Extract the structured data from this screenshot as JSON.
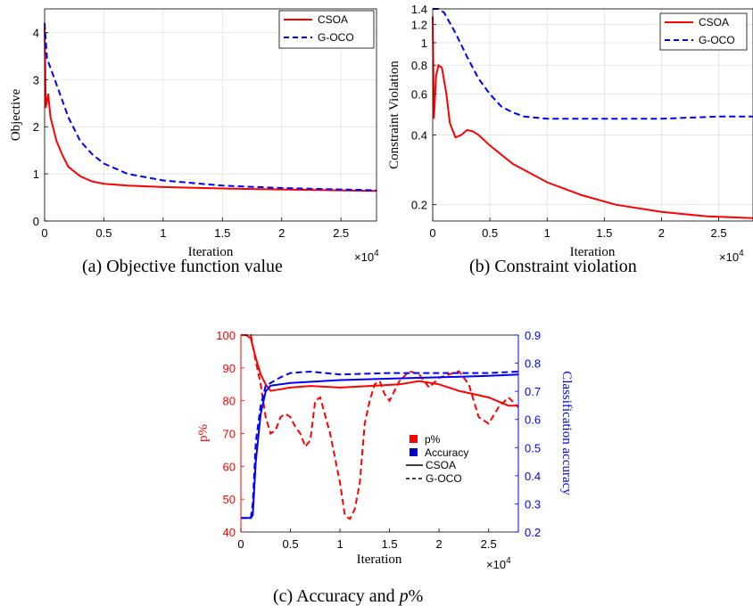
{
  "captions": {
    "a": "(a) Objective function value",
    "b": "(b) Constraint violation",
    "c_prefix": "(c) Accuracy and ",
    "c_var": "p",
    "c_suffix": "%"
  },
  "chart_data": [
    {
      "type": "line",
      "ylabel": "Objective",
      "xlabel": "Iteration",
      "x_multiplier": "×10^4",
      "xlim": [
        0,
        2.8
      ],
      "ylim": [
        0,
        4.5
      ],
      "x_ticks": [
        "0",
        "0.5",
        "1",
        "1.5",
        "2",
        "2.5"
      ],
      "y_ticks": [
        "0",
        "1",
        "2",
        "3",
        "4"
      ],
      "grid": true,
      "legend": "top-right",
      "series": [
        {
          "name": "CSOA",
          "color": "#ff0000",
          "style": "solid",
          "x": [
            0,
            0.01,
            0.03,
            0.05,
            0.1,
            0.15,
            0.2,
            0.3,
            0.4,
            0.5,
            0.7,
            1.0,
            1.5,
            2.0,
            2.5,
            2.8
          ],
          "y": [
            4.1,
            2.4,
            2.7,
            2.2,
            1.7,
            1.4,
            1.15,
            0.95,
            0.84,
            0.79,
            0.75,
            0.72,
            0.69,
            0.67,
            0.65,
            0.64
          ]
        },
        {
          "name": "G-OCO",
          "color": "#0000ff",
          "style": "dashed",
          "x": [
            0,
            0.02,
            0.1,
            0.2,
            0.3,
            0.4,
            0.5,
            0.7,
            1.0,
            1.5,
            2.0,
            2.5,
            2.8
          ],
          "y": [
            4.2,
            3.45,
            2.9,
            2.2,
            1.7,
            1.42,
            1.22,
            1.0,
            0.86,
            0.75,
            0.7,
            0.67,
            0.65
          ]
        }
      ]
    },
    {
      "type": "line",
      "ylabel": "Constraint Violation",
      "xlabel": "Iteration",
      "x_multiplier": "×10^4",
      "xlim": [
        0,
        2.8
      ],
      "ylim": [
        0.17,
        1.4
      ],
      "yscale": "log",
      "x_ticks": [
        "0",
        "0.5",
        "1",
        "1.5",
        "2",
        "2.5"
      ],
      "y_ticks": [
        "0.2",
        "0.4",
        "0.6",
        "0.8",
        "1",
        "1.2",
        "1.4"
      ],
      "grid": true,
      "legend": "top-right",
      "series": [
        {
          "name": "CSOA",
          "color": "#ff0000",
          "style": "solid",
          "x": [
            0,
            0.01,
            0.03,
            0.05,
            0.08,
            0.12,
            0.15,
            0.2,
            0.25,
            0.3,
            0.35,
            0.4,
            0.5,
            0.7,
            1.0,
            1.3,
            1.6,
            2.0,
            2.4,
            2.8
          ],
          "y": [
            1.3,
            0.47,
            0.72,
            0.8,
            0.78,
            0.6,
            0.45,
            0.39,
            0.4,
            0.42,
            0.415,
            0.4,
            0.36,
            0.3,
            0.25,
            0.22,
            0.2,
            0.186,
            0.178,
            0.175
          ]
        },
        {
          "name": "G-OCO",
          "color": "#0000ff",
          "style": "dashed",
          "x": [
            0,
            0.05,
            0.1,
            0.2,
            0.3,
            0.4,
            0.5,
            0.6,
            0.7,
            0.8,
            1.0,
            1.5,
            2.0,
            2.5,
            2.8
          ],
          "y": [
            1.45,
            1.42,
            1.35,
            1.1,
            0.87,
            0.7,
            0.6,
            0.53,
            0.5,
            0.48,
            0.47,
            0.47,
            0.47,
            0.48,
            0.48
          ]
        }
      ]
    },
    {
      "type": "line",
      "ylabel_left": "p%",
      "ylabel_right": "Classification accuracy",
      "xlabel": "Iteration",
      "x_multiplier": "×10^4",
      "xlim": [
        0,
        2.8
      ],
      "ylim_left": [
        40,
        100
      ],
      "ylim_right": [
        0.2,
        0.9
      ],
      "x_ticks": [
        "0",
        "0.5",
        "1",
        "1.5",
        "2",
        "2.5"
      ],
      "y_ticks_left": [
        "40",
        "50",
        "60",
        "70",
        "80",
        "90",
        "100"
      ],
      "y_ticks_right": [
        "0.2",
        "0.3",
        "0.4",
        "0.5",
        "0.6",
        "0.7",
        "0.8",
        "0.9"
      ],
      "left_color": "#ff0000",
      "right_color": "#0000ff",
      "legend": "center",
      "legend_entries": [
        "p%",
        "Accuracy",
        "CSOA",
        "G-OCO"
      ],
      "series": [
        {
          "name": "p% CSOA",
          "axis": "left",
          "color": "#ff0000",
          "style": "solid",
          "x": [
            0,
            0.05,
            0.1,
            0.15,
            0.2,
            0.25,
            0.3,
            0.4,
            0.5,
            0.7,
            1.0,
            1.3,
            1.6,
            1.8,
            2.0,
            2.2,
            2.5,
            2.7,
            2.8
          ],
          "y": [
            100,
            100,
            99,
            93,
            88,
            85,
            83,
            83.5,
            84,
            84.5,
            84,
            84.5,
            85,
            86,
            85,
            83,
            81,
            78.5,
            78.5
          ]
        },
        {
          "name": "p% G-OCO",
          "axis": "left",
          "color": "#ff0000",
          "style": "dashed",
          "x": [
            0,
            0.1,
            0.15,
            0.2,
            0.25,
            0.3,
            0.35,
            0.4,
            0.45,
            0.5,
            0.55,
            0.6,
            0.65,
            0.7,
            0.75,
            0.8,
            0.9,
            1.0,
            1.05,
            1.1,
            1.15,
            1.2,
            1.25,
            1.3,
            1.35,
            1.4,
            1.45,
            1.5,
            1.6,
            1.7,
            1.8,
            1.9,
            2.0,
            2.1,
            2.2,
            2.3,
            2.4,
            2.5,
            2.6,
            2.7,
            2.8
          ],
          "y": [
            100,
            100,
            92,
            85,
            75,
            70,
            71,
            75,
            76,
            75,
            72,
            70,
            66,
            68,
            80,
            81,
            70,
            55,
            45,
            44,
            47,
            55,
            73,
            80,
            85,
            86,
            82,
            80,
            86,
            89,
            88,
            84,
            87,
            88,
            89,
            85,
            75,
            73,
            78,
            81,
            78
          ]
        },
        {
          "name": "Accuracy CSOA",
          "axis": "right",
          "color": "#0000ff",
          "style": "solid",
          "x": [
            0,
            0.1,
            0.12,
            0.15,
            0.2,
            0.25,
            0.3,
            0.5,
            1.0,
            1.5,
            2.0,
            2.5,
            2.8
          ],
          "y": [
            0.25,
            0.25,
            0.26,
            0.45,
            0.62,
            0.7,
            0.72,
            0.73,
            0.74,
            0.745,
            0.75,
            0.755,
            0.76
          ]
        },
        {
          "name": "Accuracy G-OCO",
          "axis": "right",
          "color": "#0000ff",
          "style": "dashed",
          "x": [
            0,
            0.1,
            0.12,
            0.15,
            0.2,
            0.25,
            0.3,
            0.4,
            0.5,
            0.7,
            1.0,
            1.5,
            2.0,
            2.5,
            2.8
          ],
          "y": [
            0.25,
            0.25,
            0.3,
            0.52,
            0.65,
            0.72,
            0.73,
            0.75,
            0.765,
            0.77,
            0.76,
            0.765,
            0.765,
            0.765,
            0.77
          ]
        }
      ]
    }
  ]
}
